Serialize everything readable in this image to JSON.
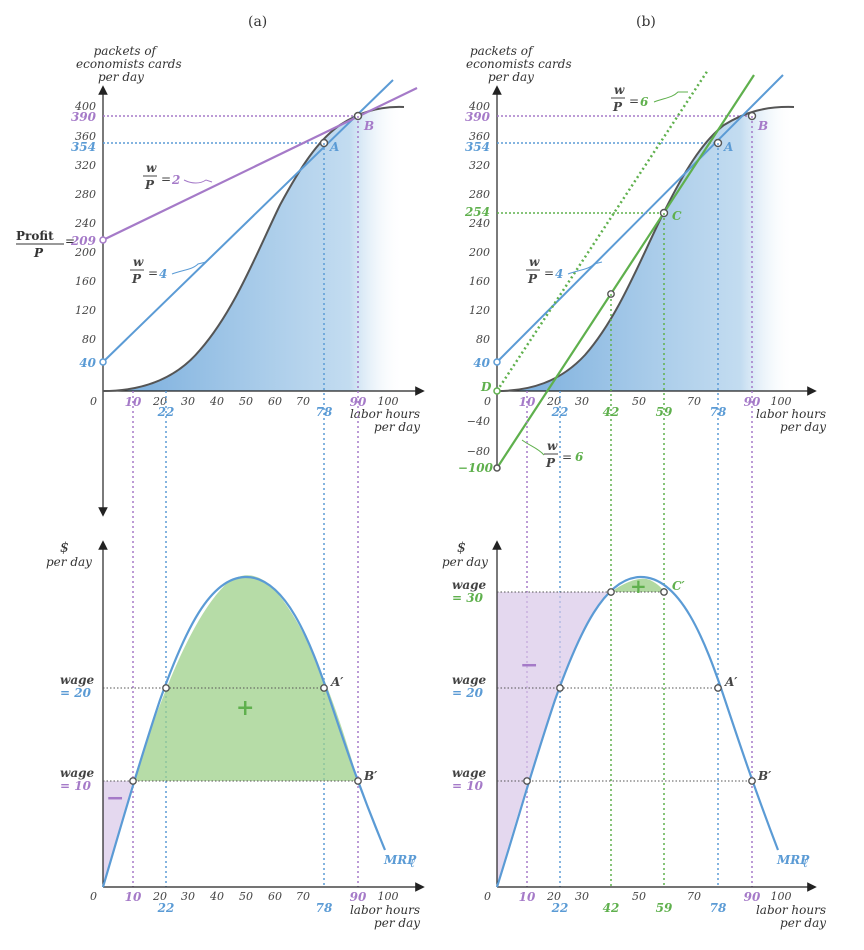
{
  "panels": {
    "a": {
      "title": "(a)"
    },
    "b": {
      "title": "(b)"
    }
  },
  "labels": {
    "y_top_1": "packets of",
    "y_top_2": "economists cards",
    "y_top_3": "per day",
    "x_1": "labor hours",
    "x_2": "per day",
    "y_bot_1": "$",
    "y_bot_2": "per day",
    "wage_word": "wage",
    "mrp": "MRP",
    "mrp_sub": "ℓ",
    "w": "w",
    "p": "P",
    "profit": "Profit",
    "eq": "=",
    "zero": "0"
  },
  "values": {
    "profit_a": "209",
    "a_390": "390",
    "a_354": "354",
    "a_40": "40",
    "a_10": "10",
    "a_22": "22",
    "a_78": "78",
    "a_90": "90",
    "a_wp2": "2",
    "a_wp4": "4",
    "b_390": "390",
    "b_354": "354",
    "b_254": "254",
    "b_40": "40",
    "b_m100": "−100",
    "b_wp6_top": "6",
    "b_wp4": "4",
    "b_wp6_bot": "6",
    "b_10": "10",
    "b_22": "22",
    "b_42": "42",
    "b_59": "59",
    "b_78": "78",
    "b_90": "90",
    "wage20": "= 20",
    "wage10": "= 10",
    "wage30": "= 30"
  },
  "points": {
    "A": "A",
    "B": "B",
    "C": "C",
    "D": "D",
    "Ap": "A′",
    "Bp": "B′",
    "Cp": "C′"
  },
  "signs": {
    "plus": "+",
    "minus": "−"
  },
  "ticks": {
    "x": [
      "10",
      "20",
      "30",
      "40",
      "50",
      "60",
      "70",
      "80",
      "90",
      "100"
    ],
    "y_top_a": [
      "400",
      "360",
      "320",
      "280",
      "240",
      "200",
      "160",
      "120",
      "80"
    ],
    "y_top_b": [
      "400",
      "360",
      "320",
      "280",
      "240",
      "200",
      "160",
      "120",
      "80",
      "−40",
      "−80"
    ]
  },
  "colors": {
    "blue": "#5b9bd5",
    "purple": "#a57ac8",
    "green": "#5fb04d",
    "dark": "#444444"
  }
}
